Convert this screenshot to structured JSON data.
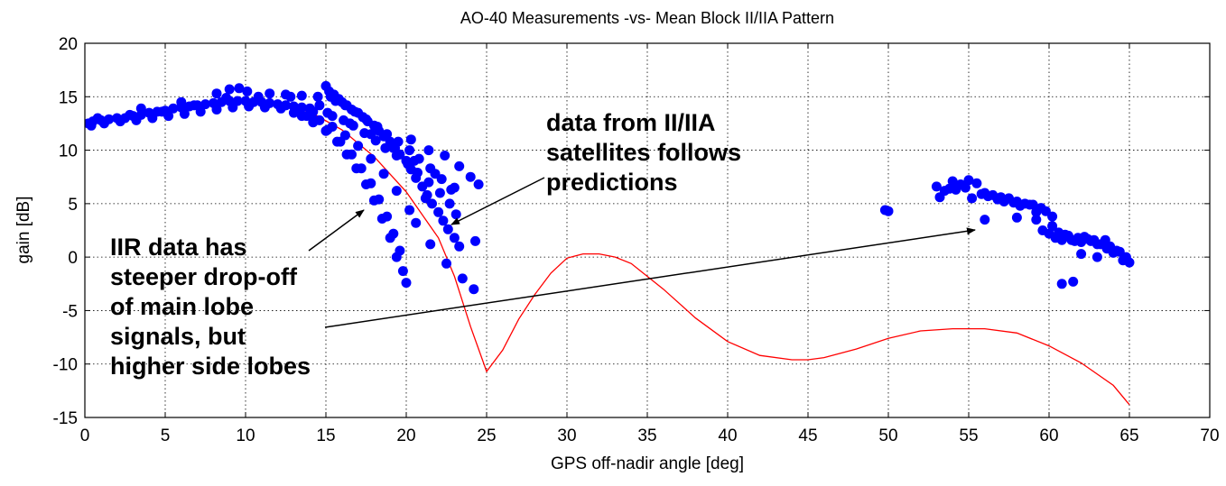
{
  "chart_data": {
    "type": "scatter",
    "title": "AO-40 Measurements -vs- Mean Block II/IIA Pattern",
    "xlabel": "GPS off-nadir angle [deg]",
    "ylabel": "gain [dB]",
    "xlim": [
      0,
      70
    ],
    "ylim": [
      -15,
      20
    ],
    "xticks": [
      0,
      5,
      10,
      15,
      20,
      25,
      30,
      35,
      40,
      45,
      50,
      55,
      60,
      65,
      70
    ],
    "yticks": [
      -15,
      -10,
      -5,
      0,
      5,
      10,
      15,
      20
    ],
    "grid": true,
    "colors": {
      "measurements": "#0000ff",
      "pattern": "#ff0000",
      "annotation": "#000000"
    },
    "series": [
      {
        "kind": "scatter",
        "color": "#0000ff",
        "x": [
          0.2,
          0.5,
          1,
          1.5,
          2,
          2.5,
          3,
          3.5,
          4,
          4.5,
          5,
          5.5,
          6,
          6.5,
          7,
          7.5,
          8,
          8.5,
          9,
          9.5,
          10,
          10.5,
          11,
          11.5,
          12,
          12.5,
          13,
          13.5,
          14,
          0.4,
          1.2,
          2.2,
          3.2,
          4.2,
          5.2,
          6.2,
          7.2,
          8.2,
          9.2,
          10.2,
          11.2,
          12.2,
          13.2,
          14.2,
          0.8,
          2.8,
          4.8,
          6.8,
          8.8,
          10.8,
          12.8,
          3.5,
          6,
          8.2,
          9,
          9.6,
          10.1,
          11.5,
          12.5,
          13.5,
          14.5,
          14.6,
          15,
          15.2,
          15.5,
          15.8,
          16,
          16.3,
          16.6,
          17,
          17.3,
          17.6,
          18,
          18.3,
          18.6,
          19,
          19.3,
          19.6,
          20,
          20.3,
          20.6,
          21,
          21.3,
          21.6,
          22,
          22.3,
          22.6,
          23,
          23.3,
          15.3,
          15.6,
          16.2,
          16.8,
          17.5,
          18.2,
          18.8,
          19.5,
          20.2,
          20.8,
          21.5,
          22.2,
          22.8,
          15.1,
          15.4,
          16.1,
          16.7,
          17.4,
          18.1,
          18.7,
          19.4,
          20.1,
          20.7,
          21.4,
          22.1,
          22.7,
          23.1,
          16.5,
          17.8,
          19.2,
          20.5,
          21.8,
          23,
          21.2,
          24.3,
          20.3,
          21.4,
          22.4,
          23.3,
          24,
          24.5,
          13.5,
          14.2,
          15,
          15.7,
          16.3,
          16.9,
          17.5,
          18,
          18.5,
          19,
          19.4,
          19.8,
          20,
          14.3,
          15.1,
          15.9,
          16.6,
          17.2,
          17.8,
          18.3,
          18.8,
          19.2,
          19.6,
          13,
          13.8,
          14.6,
          15.4,
          16.2,
          17,
          17.8,
          18.6,
          19.4,
          20.2,
          20.6,
          21.5,
          22.5,
          23.5,
          24.2,
          53,
          53.5,
          54,
          54.5,
          55,
          55.5,
          56,
          56.5,
          57,
          57.5,
          58,
          58.5,
          59,
          59.5,
          53.2,
          54.2,
          55.2,
          56.2,
          57.2,
          58.2,
          59.2,
          53.8,
          54.8,
          55.8,
          56.8,
          57.8,
          58.8,
          59.8,
          59.2,
          59.6,
          60,
          60.4,
          60.8,
          61.2,
          61.6,
          62,
          62.4,
          62.8,
          63.2,
          63.6,
          64,
          64.4,
          64.8,
          65,
          60.2,
          61,
          61.8,
          62.6,
          63.4,
          64.2,
          64.6,
          60.6,
          61.4,
          62.2,
          63,
          63.8,
          62,
          63,
          63.5,
          56,
          58,
          60.2,
          61.5,
          60.8,
          49.8,
          50
        ],
        "y": [
          12.5,
          12.7,
          12.8,
          12.9,
          13,
          13,
          13.2,
          13.3,
          13.5,
          13.6,
          13.7,
          13.9,
          14,
          14.1,
          14.2,
          14.3,
          14.4,
          14.5,
          14.6,
          14.6,
          14.6,
          14.5,
          14.5,
          14.4,
          14.3,
          14.2,
          14.1,
          14,
          13.9,
          12.3,
          12.5,
          12.7,
          12.8,
          13,
          13.2,
          13.4,
          13.6,
          13.8,
          14,
          14.1,
          14,
          13.9,
          13.8,
          13.6,
          13,
          13.3,
          13.6,
          14.2,
          14.9,
          15,
          15,
          13.9,
          14.5,
          15.3,
          15.7,
          15.8,
          15.5,
          15.3,
          15.2,
          15.1,
          15,
          14.2,
          16,
          15.5,
          15.2,
          14.8,
          14.5,
          14.2,
          13.8,
          13.5,
          13.1,
          12.7,
          12.3,
          11.8,
          11.3,
          10.8,
          10.2,
          9.6,
          9,
          8.2,
          7.4,
          6.6,
          5.8,
          5,
          4.2,
          3.4,
          2.6,
          1.8,
          1,
          15,
          14.6,
          14.2,
          13.6,
          12.9,
          12.2,
          11.5,
          10.8,
          10,
          9.2,
          8.3,
          7.3,
          6.3,
          13.5,
          13.2,
          12.8,
          12.3,
          11.6,
          10.9,
          10.2,
          9.5,
          8.7,
          7.9,
          7,
          6,
          5,
          4,
          12.5,
          11.5,
          10.2,
          9,
          7.8,
          6.5,
          5.5,
          1.5,
          11,
          10,
          9.5,
          8.5,
          7.5,
          6.8,
          13.2,
          12.6,
          11.8,
          10.8,
          9.6,
          8.3,
          6.8,
          5.3,
          3.6,
          1.8,
          0,
          -1.3,
          -2.4,
          12.8,
          11.9,
          10.8,
          9.6,
          8.3,
          6.9,
          5.4,
          3.8,
          2.2,
          0.6,
          13.5,
          13.2,
          12.8,
          12.2,
          11.4,
          10.4,
          9.2,
          7.8,
          6.2,
          4.4,
          3.2,
          1.2,
          -0.6,
          -2,
          -3,
          6.6,
          6.2,
          7.1,
          6.8,
          7.2,
          6.9,
          6,
          5.8,
          5.6,
          5.5,
          5.2,
          5,
          4.9,
          4.6,
          5.6,
          6.3,
          5.5,
          5.7,
          5.2,
          4.8,
          4.2,
          6.4,
          6.5,
          5.9,
          5.4,
          5.1,
          4.9,
          4.3,
          3.5,
          2.5,
          2.2,
          1.8,
          1.6,
          2,
          1.5,
          1.4,
          1.7,
          1.6,
          1.2,
          0.8,
          0.4,
          0.5,
          0,
          -0.5,
          2.9,
          2.1,
          1.8,
          1.5,
          1.2,
          0.6,
          -0.3,
          2.3,
          1.6,
          1.9,
          0,
          1,
          0.3,
          1.2,
          1.6,
          3.5,
          3.7,
          3.8,
          -2.3,
          -2.5,
          4.4,
          4.3
        ]
      },
      {
        "kind": "line",
        "color": "#ff0000",
        "x": [
          0,
          2,
          4,
          6,
          8,
          10,
          12,
          14,
          16,
          18,
          20,
          22,
          23,
          24,
          25,
          26,
          27,
          28,
          29,
          30,
          31,
          32,
          33,
          34,
          36,
          38,
          40,
          42,
          44,
          45,
          46,
          48,
          50,
          52,
          54,
          56,
          58,
          60,
          62,
          64,
          65
        ],
        "y": [
          12.7,
          13.1,
          13.5,
          14,
          14.4,
          14.6,
          14.4,
          13.6,
          11.9,
          9.4,
          6.1,
          1.8,
          -1.8,
          -6.5,
          -10.7,
          -8.7,
          -5.8,
          -3.5,
          -1.5,
          -0.1,
          0.3,
          0.3,
          0,
          -0.6,
          -3,
          -5.7,
          -7.9,
          -9.2,
          -9.6,
          -9.6,
          -9.4,
          -8.6,
          -7.6,
          -6.9,
          -6.7,
          -6.7,
          -7.1,
          -8.3,
          -9.9,
          -12,
          -13.8
        ]
      }
    ],
    "annotations": [
      {
        "text_lines": [
          "data from II/IIA",
          "satellites follows",
          "predictions"
        ],
        "arrows": [
          [
            [
              603,
              197
            ],
            [
              500,
              249
            ]
          ]
        ]
      },
      {
        "text_lines": [
          "IIR data has",
          "steeper drop-off",
          "of main lobe",
          "signals, but",
          "higher side lobes"
        ],
        "arrows": [
          [
            [
              342,
              278
            ],
            [
              403,
              233
            ]
          ],
          [
            [
              360,
              363
            ],
            [
              1080,
              255
            ]
          ]
        ]
      }
    ]
  }
}
